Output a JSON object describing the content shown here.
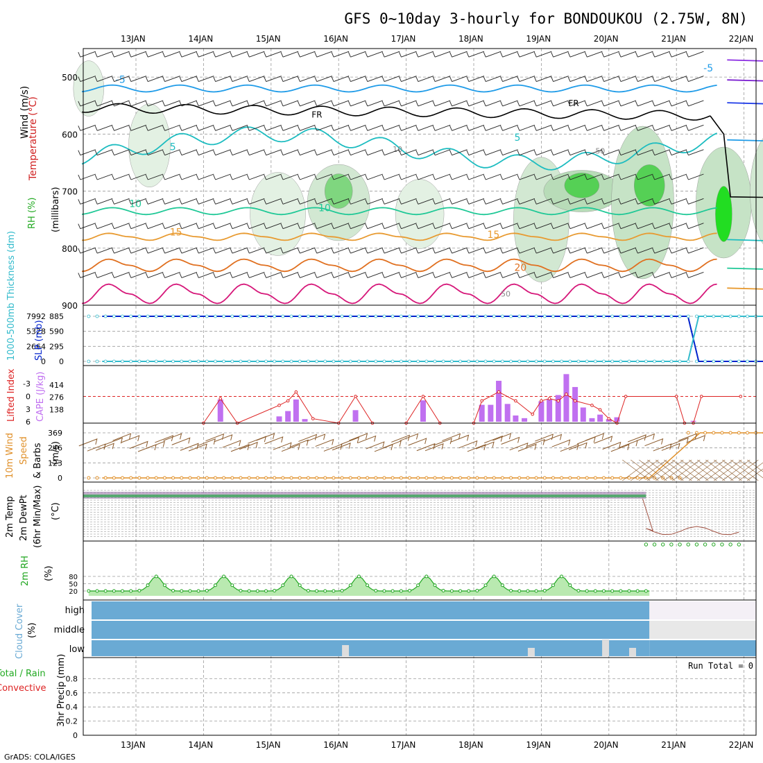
{
  "title": "GFS 0~10day 3-hourly for BONDOUKOU (2.75W, 8N)",
  "footer": "GrADS: COLA/IGES",
  "dates": [
    "13JAN",
    "14JAN",
    "15JAN",
    "16JAN",
    "17JAN",
    "18JAN",
    "19JAN",
    "20JAN",
    "21JAN",
    "22JAN"
  ],
  "colors": {
    "grid": "#9a9a9a",
    "rh": "#22c522",
    "slp": "#0022cc",
    "thick": "#33bbcc",
    "cape": "#c070f0",
    "li": "#dd2222",
    "wind": "#e0902a",
    "barb": "#8b5a2b",
    "cloud": "#6aaad4",
    "rh2m": "#1fa51f"
  },
  "chart_data": [
    {
      "type": "contour",
      "panel": "upper-air",
      "labels": {
        "wind": "Wind (m/s)",
        "temperature": "Temperature (°C)",
        "rh": "RH (%)",
        "pressure": "(millibars)"
      },
      "y_ticks": [
        "500",
        "600",
        "700",
        "800",
        "900"
      ],
      "ylim": [
        450,
        900
      ],
      "isotherm_labels": [
        "-5",
        "-5",
        "5",
        "5",
        "10",
        "10",
        "15",
        "15",
        "20"
      ],
      "freezing_level_labels": [
        "FR",
        "FR"
      ],
      "rh_contour_labels": [
        "10",
        "50",
        "50"
      ]
    },
    {
      "type": "line",
      "panel": "slp-thickness",
      "labels": {
        "thickness": "1000-500mb Thickness (dm)",
        "slp": "SLP (mb)"
      },
      "left_ticks": [
        "7992",
        "5328",
        "2664",
        "0"
      ],
      "right_ticks": [
        "885",
        "590",
        "295",
        "0"
      ],
      "series": [
        {
          "name": "SLP",
          "x": [
            0,
            8.67,
            8.83,
            9.95
          ],
          "values": [
            885,
            885,
            0,
            0
          ]
        },
        {
          "name": "Thickness",
          "x": [
            0,
            8.67,
            8.83,
            9.95
          ],
          "values": [
            0,
            0,
            7992,
            7992
          ]
        }
      ]
    },
    {
      "type": "bar",
      "panel": "cape-li",
      "labels": {
        "li": "Lifted Index",
        "cape": "CAPE (J/kg)"
      },
      "left_ticks": [
        "-3",
        "0",
        "3",
        "6"
      ],
      "right_ticks": [
        "414",
        "276",
        "138"
      ],
      "cape_bars": [
        {
          "x": 2.25,
          "v": 250
        },
        {
          "x": 3.12,
          "v": 60
        },
        {
          "x": 3.25,
          "v": 120
        },
        {
          "x": 3.37,
          "v": 250
        },
        {
          "x": 3.5,
          "v": 30
        },
        {
          "x": 4.25,
          "v": 130
        },
        {
          "x": 5.25,
          "v": 240
        },
        {
          "x": 6.12,
          "v": 190
        },
        {
          "x": 6.25,
          "v": 190
        },
        {
          "x": 6.37,
          "v": 460
        },
        {
          "x": 6.5,
          "v": 200
        },
        {
          "x": 6.62,
          "v": 70
        },
        {
          "x": 6.75,
          "v": 40
        },
        {
          "x": 7.0,
          "v": 230
        },
        {
          "x": 7.12,
          "v": 250
        },
        {
          "x": 7.25,
          "v": 300
        },
        {
          "x": 7.37,
          "v": 535
        },
        {
          "x": 7.5,
          "v": 390
        },
        {
          "x": 7.62,
          "v": 160
        },
        {
          "x": 7.75,
          "v": 40
        },
        {
          "x": 7.87,
          "v": 80
        },
        {
          "x": 8.0,
          "v": 30
        },
        {
          "x": 8.12,
          "v": 50
        },
        {
          "x": 9.25,
          "v": 10
        }
      ],
      "li_points": [
        {
          "x": 2.0,
          "v": 6
        },
        {
          "x": 2.25,
          "v": 0.5
        },
        {
          "x": 2.5,
          "v": 6
        },
        {
          "x": 3.12,
          "v": 2
        },
        {
          "x": 3.25,
          "v": 1
        },
        {
          "x": 3.37,
          "v": -1
        },
        {
          "x": 3.62,
          "v": 5
        },
        {
          "x": 4.0,
          "v": 6
        },
        {
          "x": 4.25,
          "v": 0
        },
        {
          "x": 4.5,
          "v": 6
        },
        {
          "x": 5.0,
          "v": 6
        },
        {
          "x": 5.25,
          "v": 0
        },
        {
          "x": 5.5,
          "v": 6
        },
        {
          "x": 6.0,
          "v": 6
        },
        {
          "x": 6.12,
          "v": 1
        },
        {
          "x": 6.37,
          "v": -1
        },
        {
          "x": 6.62,
          "v": 1
        },
        {
          "x": 6.87,
          "v": 4
        },
        {
          "x": 7.0,
          "v": 1
        },
        {
          "x": 7.12,
          "v": 0.5
        },
        {
          "x": 7.25,
          "v": 1
        },
        {
          "x": 7.37,
          "v": -0.5
        },
        {
          "x": 7.5,
          "v": 1
        },
        {
          "x": 7.75,
          "v": 2
        },
        {
          "x": 7.87,
          "v": 3
        },
        {
          "x": 8.0,
          "v": 5
        },
        {
          "x": 8.12,
          "v": 6
        },
        {
          "x": 8.25,
          "v": 0
        },
        {
          "x": 9.0,
          "v": 0
        },
        {
          "x": 9.12,
          "v": 6
        },
        {
          "x": 9.25,
          "v": 6
        },
        {
          "x": 9.37,
          "v": 0
        },
        {
          "x": 9.95,
          "v": 0
        }
      ]
    },
    {
      "type": "line",
      "panel": "10m-wind",
      "labels": {
        "a": "10m Wind",
        "b": "Speed",
        "c": "& Barbs",
        "units": "(m/s)"
      },
      "right_ticks": [
        "369",
        "246",
        "123",
        "0"
      ],
      "series": [
        {
          "name": "Speed",
          "x": [
            0,
            8.1,
            8.85,
            9.95
          ],
          "values": [
            0,
            0,
            369,
            369
          ]
        }
      ]
    },
    {
      "type": "line",
      "panel": "2m-temp",
      "labels": {
        "a": "2m Temp",
        "b": "2m DewPt",
        "c": "(6hr Min/Max)",
        "units": "(°C)"
      },
      "series": [
        {
          "name": "Temp",
          "x": [
            0,
            8.6,
            8.8,
            9.95
          ],
          "values": [
            28,
            28,
            -20,
            -14
          ]
        }
      ]
    },
    {
      "type": "area",
      "panel": "2m-rh",
      "labels": {
        "a": "2m RH",
        "units": "(%)"
      },
      "right_ticks": [
        "80",
        "50",
        "20"
      ],
      "peaks_x": [
        1.3,
        2.3,
        3.3,
        4.3,
        5.3,
        6.3,
        7.3
      ],
      "peak_value": 80,
      "base_value": 20
    },
    {
      "type": "bar",
      "panel": "cloud-cover",
      "labels": {
        "a": "Cloud Cover",
        "units": "(%)"
      },
      "levels": [
        "high",
        "middle",
        "low"
      ]
    },
    {
      "type": "bar",
      "panel": "precip",
      "labels": {
        "a": "Total / Rain",
        "b": "Convective",
        "c": "3hr Precip (mm)"
      },
      "run_total": "Run Total = 0",
      "y_ticks": [
        "0.8",
        "0.6",
        "0.4",
        "0.2",
        "0"
      ],
      "ylim": [
        0,
        1
      ]
    }
  ]
}
